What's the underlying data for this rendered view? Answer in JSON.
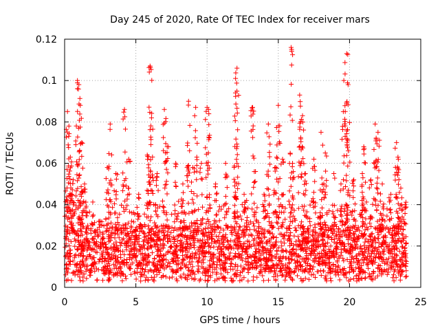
{
  "chart_data": {
    "type": "scatter",
    "title": "Day 245 of 2020, Rate Of TEC Index for receiver mars",
    "xlabel": "GPS time / hours",
    "ylabel": "ROTI / TECUs",
    "xlim": [
      0,
      25
    ],
    "ylim": [
      0,
      0.12
    ],
    "x_ticks": [
      0,
      5,
      10,
      15,
      20,
      25
    ],
    "y_ticks": [
      0,
      0.02,
      0.04,
      0.06,
      0.08,
      0.1,
      0.12
    ],
    "x_tick_labels": [
      "0",
      "5",
      "10",
      "15",
      "20",
      "25"
    ],
    "y_tick_labels": [
      "0",
      "0.02",
      "0.04",
      "0.06",
      "0.08",
      "0.1",
      "0.12"
    ],
    "grid": true,
    "marker": "plus",
    "marker_color": "#ff0000",
    "series": [
      {
        "name": "ROTI",
        "x": [
          0.2,
          0.3,
          0.4,
          0.5,
          0.9,
          1.0,
          1.1,
          1.2,
          3.2,
          4.2,
          6.0,
          6.1,
          7.0,
          8.7,
          9.2,
          10.0,
          10.1,
          12.0,
          12.1,
          13.2,
          14.3,
          15.0,
          15.9,
          16.5,
          16.7,
          18.0,
          19.6,
          19.8,
          19.9,
          21.0,
          21.8,
          22.0,
          23.3,
          23.4,
          0.6,
          1.4,
          2.0,
          2.5,
          3.0,
          3.6,
          4.5,
          5.2,
          5.8,
          6.5,
          7.2,
          7.8,
          8.3,
          9.0,
          9.6,
          10.6,
          11.3,
          11.9,
          12.6,
          13.4,
          14.0,
          14.8,
          15.3,
          16.0,
          16.9,
          17.5,
          18.3,
          18.9,
          19.4,
          20.3,
          20.9,
          21.5,
          22.3,
          22.9,
          23.6,
          23.9
        ],
        "y": [
          0.085,
          0.078,
          0.063,
          0.045,
          0.1,
          0.098,
          0.088,
          0.07,
          0.079,
          0.086,
          0.107,
          0.082,
          0.086,
          0.09,
          0.087,
          0.087,
          0.086,
          0.101,
          0.106,
          0.087,
          0.079,
          0.088,
          0.116,
          0.093,
          0.083,
          0.075,
          0.1,
          0.113,
          0.098,
          0.068,
          0.079,
          0.075,
          0.07,
          0.063,
          0.052,
          0.05,
          0.035,
          0.032,
          0.058,
          0.055,
          0.062,
          0.045,
          0.064,
          0.055,
          0.068,
          0.06,
          0.05,
          0.058,
          0.06,
          0.05,
          0.06,
          0.058,
          0.045,
          0.056,
          0.045,
          0.058,
          0.062,
          0.06,
          0.055,
          0.062,
          0.065,
          0.055,
          0.05,
          0.052,
          0.055,
          0.052,
          0.05,
          0.045,
          0.048,
          0.04
        ]
      }
    ],
    "dense_band": {
      "description_free": true,
      "x_range": [
        0,
        24
      ],
      "y_min": 0.003,
      "y_typical_low": 0.007,
      "y_typical_high": 0.03,
      "count": 2600
    }
  }
}
